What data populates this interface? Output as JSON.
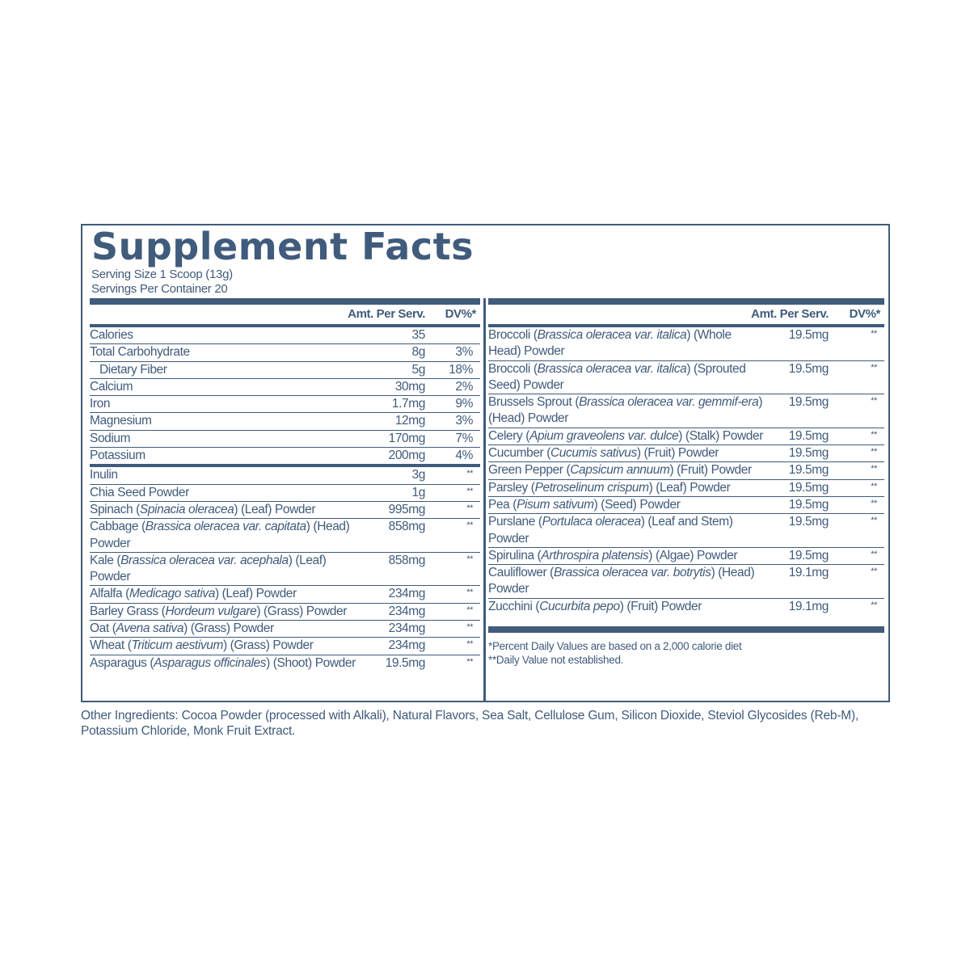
{
  "title": "Supplement Facts",
  "serving_size": "Serving Size 1 Scoop (13g)",
  "servings_per_container": "Servings Per Container 20",
  "headers": {
    "amount": "Amt. Per Serv.",
    "dv": "DV%*"
  },
  "colors": {
    "text": "#405b7c"
  },
  "left_rows": [
    {
      "name": [
        {
          "t": "Calories"
        }
      ],
      "amount": "35",
      "dv": ""
    },
    {
      "name": [
        {
          "t": "Total Carbohydrate"
        }
      ],
      "amount": "8g",
      "dv": "3%"
    },
    {
      "name": [
        {
          "t": "Dietary Fiber"
        }
      ],
      "amount": "5g",
      "dv": "18%",
      "indent": true
    },
    {
      "name": [
        {
          "t": "Calcium"
        }
      ],
      "amount": "30mg",
      "dv": "2%"
    },
    {
      "name": [
        {
          "t": "Iron"
        }
      ],
      "amount": "1.7mg",
      "dv": "9%"
    },
    {
      "name": [
        {
          "t": "Magnesium"
        }
      ],
      "amount": "12mg",
      "dv": "3%"
    },
    {
      "name": [
        {
          "t": "Sodium"
        }
      ],
      "amount": "170mg",
      "dv": "7%"
    },
    {
      "name": [
        {
          "t": "Potassium"
        }
      ],
      "amount": "200mg",
      "dv": "4%",
      "thick": true
    },
    {
      "name": [
        {
          "t": "Inulin"
        }
      ],
      "amount": "3g",
      "dv": "**"
    },
    {
      "name": [
        {
          "t": "Chia Seed Powder"
        }
      ],
      "amount": "1g",
      "dv": "**"
    },
    {
      "name": [
        {
          "t": "Spinach ("
        },
        {
          "t": "Spinacia oleracea",
          "i": true
        },
        {
          "t": ") (Leaf) Powder"
        }
      ],
      "amount": "995mg",
      "dv": "**"
    },
    {
      "name": [
        {
          "t": "Cabbage ("
        },
        {
          "t": "Brassica oleracea var. capitata",
          "i": true
        },
        {
          "t": ") (Head) Powder"
        }
      ],
      "amount": "858mg",
      "dv": "**"
    },
    {
      "name": [
        {
          "t": "Kale ("
        },
        {
          "t": "Brassica oleracea var. acephala",
          "i": true
        },
        {
          "t": ") (Leaf) Powder"
        }
      ],
      "amount": "858mg",
      "dv": "**"
    },
    {
      "name": [
        {
          "t": "Alfalfa ("
        },
        {
          "t": "Medicago sativa",
          "i": true
        },
        {
          "t": ") (Leaf) Powder"
        }
      ],
      "amount": "234mg",
      "dv": "**"
    },
    {
      "name": [
        {
          "t": "Barley Grass ("
        },
        {
          "t": "Hordeum vulgare",
          "i": true
        },
        {
          "t": ") (Grass) Powder"
        }
      ],
      "amount": "234mg",
      "dv": "**"
    },
    {
      "name": [
        {
          "t": "Oat ("
        },
        {
          "t": "Avena sativa",
          "i": true
        },
        {
          "t": ") (Grass) Powder"
        }
      ],
      "amount": "234mg",
      "dv": "**"
    },
    {
      "name": [
        {
          "t": "Wheat ("
        },
        {
          "t": "Triticum aestivum",
          "i": true
        },
        {
          "t": ") (Grass) Powder"
        }
      ],
      "amount": "234mg",
      "dv": "**"
    },
    {
      "name": [
        {
          "t": "Asparagus ("
        },
        {
          "t": "Asparagus officinales",
          "i": true
        },
        {
          "t": ") (Shoot) Powder"
        }
      ],
      "amount": "19.5mg",
      "dv": "**",
      "last": true
    }
  ],
  "right_rows": [
    {
      "name": [
        {
          "t": "Broccoli ("
        },
        {
          "t": "Brassica oleracea var. italica",
          "i": true
        },
        {
          "t": ") (Whole Head) Powder"
        }
      ],
      "amount": "19.5mg",
      "dv": "**"
    },
    {
      "name": [
        {
          "t": "Broccoli ("
        },
        {
          "t": "Brassica oleracea var. italica",
          "i": true
        },
        {
          "t": ") (Sprouted Seed) Powder"
        }
      ],
      "amount": "19.5mg",
      "dv": "**"
    },
    {
      "name": [
        {
          "t": "Brussels Sprout ("
        },
        {
          "t": "Brassica oleracea var. gemmif-era",
          "i": true
        },
        {
          "t": ") (Head) Powder"
        }
      ],
      "amount": "19.5mg",
      "dv": "**"
    },
    {
      "name": [
        {
          "t": "Celery ("
        },
        {
          "t": "Apium graveolens var. dulce",
          "i": true
        },
        {
          "t": ") (Stalk) Powder"
        }
      ],
      "amount": "19.5mg",
      "dv": "**"
    },
    {
      "name": [
        {
          "t": "Cucumber ("
        },
        {
          "t": "Cucumis sativus",
          "i": true
        },
        {
          "t": ") (Fruit) Powder"
        }
      ],
      "amount": "19.5mg",
      "dv": "**"
    },
    {
      "name": [
        {
          "t": "Green Pepper ("
        },
        {
          "t": "Capsicum annuum",
          "i": true
        },
        {
          "t": ") (Fruit) Powder"
        }
      ],
      "amount": "19.5mg",
      "dv": "**"
    },
    {
      "name": [
        {
          "t": "Parsley ("
        },
        {
          "t": "Petroselinum crispum",
          "i": true
        },
        {
          "t": ") (Leaf) Powder"
        }
      ],
      "amount": "19.5mg",
      "dv": "**"
    },
    {
      "name": [
        {
          "t": "Pea ("
        },
        {
          "t": "Pisum sativum",
          "i": true
        },
        {
          "t": ") (Seed) Powder"
        }
      ],
      "amount": "19.5mg",
      "dv": "**"
    },
    {
      "name": [
        {
          "t": "Purslane ("
        },
        {
          "t": "Portulaca oleracea",
          "i": true
        },
        {
          "t": ") (Leaf and Stem) Powder"
        }
      ],
      "amount": "19.5mg",
      "dv": "**"
    },
    {
      "name": [
        {
          "t": "Spirulina ("
        },
        {
          "t": "Arthrospira platensis",
          "i": true
        },
        {
          "t": ") (Algae) Powder"
        }
      ],
      "amount": "19.5mg",
      "dv": "**"
    },
    {
      "name": [
        {
          "t": "Cauliflower ("
        },
        {
          "t": "Brassica oleracea var. botrytis",
          "i": true
        },
        {
          "t": ") (Head) Powder"
        }
      ],
      "amount": "19.1mg",
      "dv": "**"
    },
    {
      "name": [
        {
          "t": "Zucchini ("
        },
        {
          "t": "Cucurbita pepo",
          "i": true
        },
        {
          "t": ") (Fruit) Powder"
        }
      ],
      "amount": "19.1mg",
      "dv": "**",
      "last": true
    }
  ],
  "footnotes": [
    "*Percent Daily Values are based on a 2,000 calorie diet",
    "**Daily Value not established."
  ],
  "other_ingredients": "Other Ingredients: Cocoa Powder (processed with Alkali), Natural Flavors, Sea Salt, Cellulose Gum, Silicon Dioxide, Steviol Glycosides (Reb-M), Potassium Chloride, Monk Fruit Extract."
}
